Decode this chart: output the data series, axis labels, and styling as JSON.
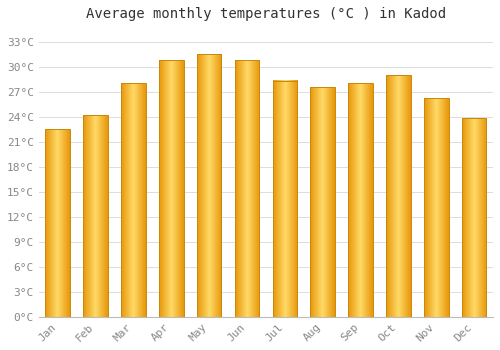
{
  "title": "Average monthly temperatures (°C ) in Kadod",
  "months": [
    "Jan",
    "Feb",
    "Mar",
    "Apr",
    "May",
    "Jun",
    "Jul",
    "Aug",
    "Sep",
    "Oct",
    "Nov",
    "Dec"
  ],
  "temperatures": [
    22.5,
    24.2,
    28.0,
    30.8,
    31.5,
    30.8,
    28.3,
    27.5,
    28.0,
    29.0,
    26.2,
    23.8
  ],
  "bar_color_main": "#FFBB33",
  "bar_color_light": "#FFD966",
  "bar_color_dark": "#E8970A",
  "bar_edge_color": "#C8880A",
  "background_color": "#FFFFFF",
  "grid_color": "#dddddd",
  "yticks": [
    0,
    3,
    6,
    9,
    12,
    15,
    18,
    21,
    24,
    27,
    30,
    33
  ],
  "ylim": [
    0,
    34.5
  ],
  "title_fontsize": 10,
  "tick_fontsize": 8,
  "font_family": "monospace",
  "tick_color": "#888888"
}
